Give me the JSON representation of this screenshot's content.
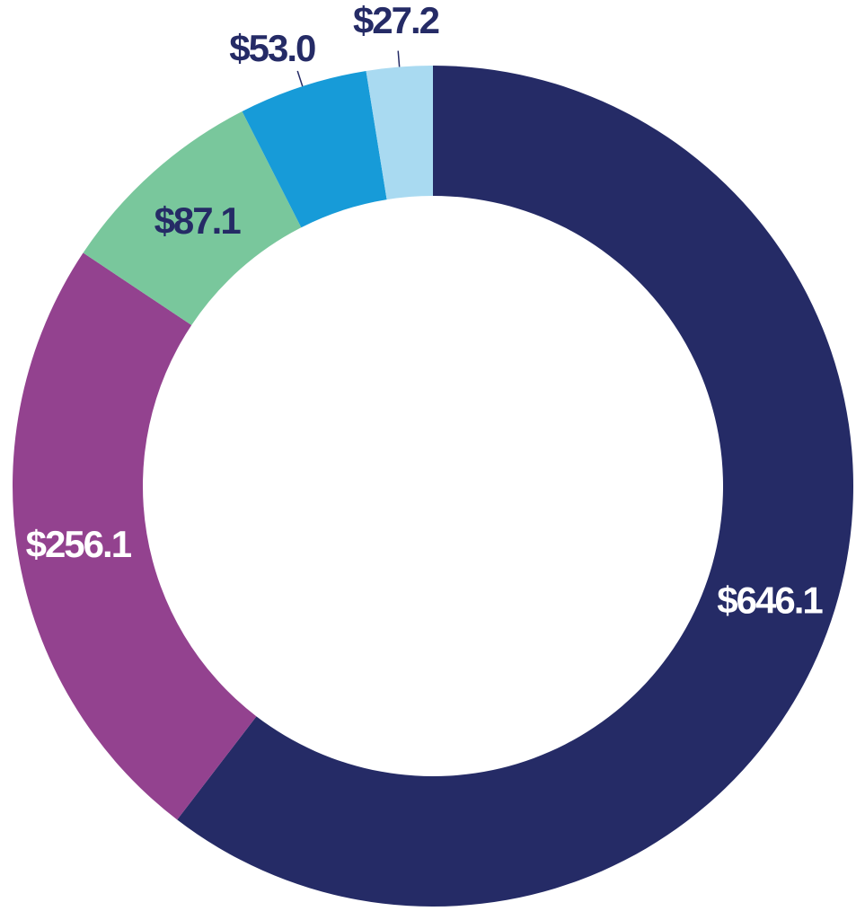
{
  "chart_data": {
    "type": "pie",
    "variant": "donut",
    "start": "12 o'clock, clockwise",
    "slices": [
      {
        "label": "$646.1",
        "value": 646.1,
        "color": "#252B66",
        "label_color": "#FFFFFF"
      },
      {
        "label": "$256.1",
        "value": 256.1,
        "color": "#93428F",
        "label_color": "#FFFFFF"
      },
      {
        "label": "$87.1",
        "value": 87.1,
        "color": "#79C79C",
        "label_color": "#252B66"
      },
      {
        "label": "$53.0",
        "value": 53.0,
        "color": "#179BD8",
        "label_color": "#252B66"
      },
      {
        "label": "$27.2",
        "value": 27.2,
        "color": "#A9DAF1",
        "label_color": "#252B66"
      }
    ]
  }
}
